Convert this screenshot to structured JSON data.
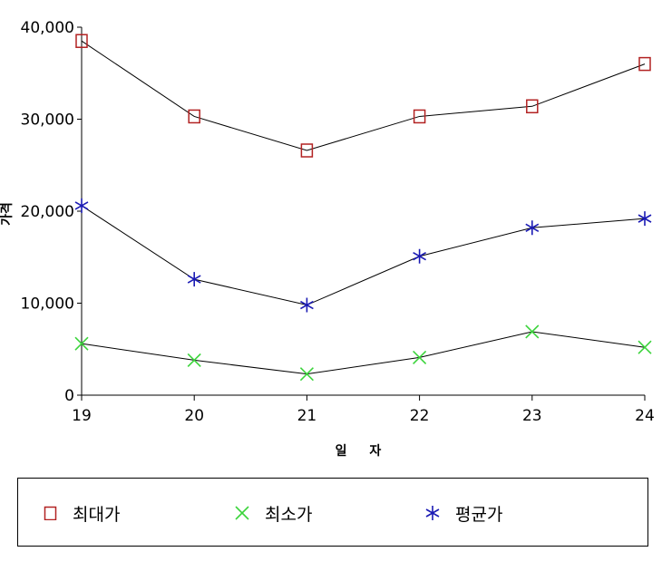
{
  "chart_data": {
    "type": "line",
    "title": "",
    "xlabel": "일 자",
    "ylabel": "가격",
    "categories": [
      "19",
      "20",
      "21",
      "22",
      "23",
      "24"
    ],
    "ylim": [
      0,
      40000
    ],
    "yticks": [
      0,
      10000,
      20000,
      30000,
      40000
    ],
    "ytick_labels": [
      "0",
      "10,000",
      "20,000",
      "30,000",
      "40,000"
    ],
    "grid": false,
    "legend_position": "bottom",
    "series": [
      {
        "name": "최대가",
        "values": [
          38500,
          30300,
          26600,
          30300,
          31400,
          36000
        ],
        "color": "#b22222",
        "marker": "square"
      },
      {
        "name": "최소가",
        "values": [
          5600,
          3800,
          2300,
          4100,
          6900,
          5200
        ],
        "color": "#3cd43c",
        "marker": "x"
      },
      {
        "name": "평균가",
        "values": [
          20600,
          12600,
          9800,
          15100,
          18200,
          19200
        ],
        "color": "#1a1ab4",
        "marker": "asterisk"
      }
    ]
  }
}
